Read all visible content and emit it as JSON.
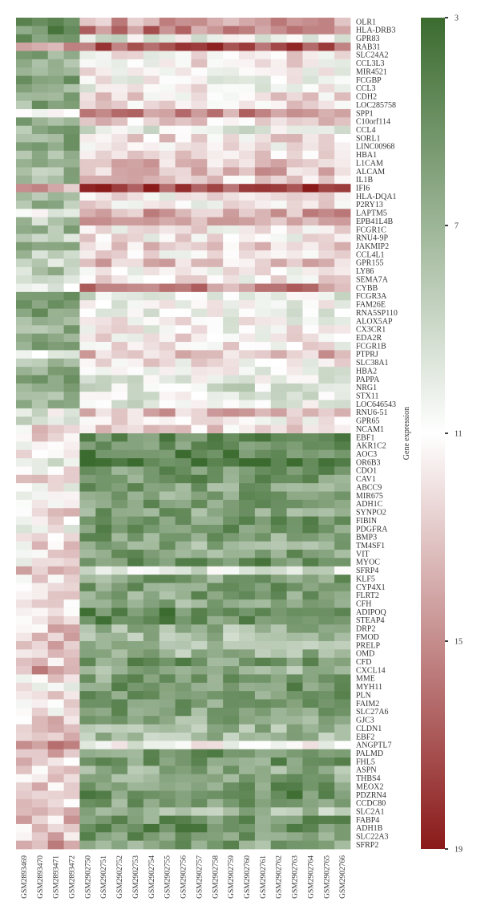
{
  "chart_data": {
    "type": "heatmap",
    "title": "",
    "colorbar_label": "Gene expression",
    "colorbar_ticks": [
      "3",
      "7",
      "11",
      "15",
      "19"
    ],
    "value_range": [
      3,
      19
    ],
    "colors": {
      "low": "#3b6b2f",
      "mid": "#ffffff",
      "high": "#8b1a1a"
    },
    "rows": [
      "OLR1",
      "HLA-DRB3",
      "GPR83",
      "RAB31",
      "SLC24A2",
      "CCL3L3",
      "MIR4521",
      "FCGBP",
      "CCL3",
      "CDH2",
      "LOC285758",
      "SPP1",
      "C10orf114",
      "CCL4",
      "SORL1",
      "LINC00968",
      "HBA1",
      "L1CAM",
      "ALCAM",
      "IL1B",
      "IFI6",
      "HLA-DQA1",
      "P2RY13",
      "LAPTM5",
      "EPB41L4B",
      "FCGR1C",
      "RNU4-9P",
      "JAKMIP2",
      "CCL4L1",
      "GPR155",
      "LY86",
      "SEMA7A",
      "CYBB",
      "FCGR3A",
      "FAM26E",
      "RNA5SP110",
      "ALOX5AP",
      "CX3CR1",
      "EDA2R",
      "FCGR1B",
      "PTPRJ",
      "SLC38A1",
      "HBA2",
      "PAPPA",
      "NRG1",
      "STX11",
      "LOC646543",
      "RNU6-51",
      "GPR65",
      "NCAM1",
      "EBF1",
      "AKR1C2",
      "AOC3",
      "OR6B3",
      "CDO1",
      "CAV1",
      "ABCC9",
      "MIR675",
      "ADH1C",
      "SYNPO2",
      "FIBIN",
      "PDGFRA",
      "BMP3",
      "TM4SF1",
      "VIT",
      "MYOC",
      "SFRP4",
      "KLF5",
      "CYP4X1",
      "FLRT2",
      "CFH",
      "ADIPOQ",
      "STEAP4",
      "DRP2",
      "FMOD",
      "PRELP",
      "OMD",
      "CFD",
      "CXCL14",
      "MME",
      "MYH11",
      "PLN",
      "FAIM2",
      "SLC27A6",
      "GJC3",
      "CLDN1",
      "EBF2",
      "ANGPTL7",
      "PALMD",
      "FHL5",
      "ASPN",
      "THBS4",
      "MEOX2",
      "PDZRN4",
      "CCDC80",
      "SLC2A1",
      "FABP4",
      "ADH1B",
      "SLC22A3",
      "SFRP2"
    ],
    "columns": [
      "GSM2893469",
      "GSM2893470",
      "GSM2893471",
      "GSM2893472",
      "GSM2902750",
      "GSM2902751",
      "GSM2902752",
      "GSM2902753",
      "GSM2902754",
      "GSM2902755",
      "GSM2902756",
      "GSM2902757",
      "GSM2902758",
      "GSM2902759",
      "GSM2902760",
      "GSM2902761",
      "GSM2902762",
      "GSM2902763",
      "GSM2902764",
      "GSM2902765",
      "GSM2902766"
    ],
    "row_group_means": [
      [
        6.0,
        14.0
      ],
      [
        5.0,
        15.5
      ],
      [
        6.0,
        10.0
      ],
      [
        14.0,
        17.0
      ],
      [
        6.0,
        11.5
      ],
      [
        6.5,
        11.5
      ],
      [
        6.5,
        11.0
      ],
      [
        6.0,
        11.0
      ],
      [
        6.5,
        11.0
      ],
      [
        7.0,
        12.0
      ],
      [
        6.5,
        12.0
      ],
      [
        10.0,
        15.0
      ],
      [
        6.5,
        12.5
      ],
      [
        6.5,
        10.0
      ],
      [
        6.5,
        12.0
      ],
      [
        6.0,
        11.0
      ],
      [
        6.5,
        12.5
      ],
      [
        7.0,
        13.0
      ],
      [
        7.0,
        13.5
      ],
      [
        7.5,
        12.5
      ],
      [
        14.0,
        17.5
      ],
      [
        7.0,
        11.5
      ],
      [
        7.5,
        11.5
      ],
      [
        11.0,
        14.0
      ],
      [
        8.0,
        14.0
      ],
      [
        7.0,
        11.5
      ],
      [
        8.0,
        11.5
      ],
      [
        7.5,
        12.5
      ],
      [
        8.0,
        11.5
      ],
      [
        9.0,
        13.0
      ],
      [
        8.0,
        11.5
      ],
      [
        8.5,
        11.5
      ],
      [
        11.0,
        15.0
      ],
      [
        6.0,
        10.0
      ],
      [
        6.0,
        10.5
      ],
      [
        6.0,
        10.5
      ],
      [
        6.0,
        11.0
      ],
      [
        6.5,
        11.0
      ],
      [
        6.5,
        11.5
      ],
      [
        6.0,
        11.5
      ],
      [
        10.0,
        13.5
      ],
      [
        7.0,
        11.5
      ],
      [
        7.0,
        10.5
      ],
      [
        6.5,
        10.0
      ],
      [
        6.5,
        9.5
      ],
      [
        6.5,
        10.0
      ],
      [
        7.0,
        10.0
      ],
      [
        10.0,
        13.5
      ],
      [
        9.5,
        11.5
      ],
      [
        12.0,
        12.5
      ],
      [
        12.0,
        5.0
      ],
      [
        11.5,
        5.0
      ],
      [
        11.5,
        4.5
      ],
      [
        10.0,
        3.5
      ],
      [
        11.5,
        5.5
      ],
      [
        12.0,
        5.5
      ],
      [
        11.0,
        6.0
      ],
      [
        11.0,
        6.0
      ],
      [
        11.5,
        6.0
      ],
      [
        12.0,
        6.0
      ],
      [
        11.5,
        5.5
      ],
      [
        11.0,
        5.0
      ],
      [
        11.0,
        6.0
      ],
      [
        12.0,
        6.5
      ],
      [
        12.0,
        6.0
      ],
      [
        11.5,
        5.0
      ],
      [
        14.0,
        9.5
      ],
      [
        11.5,
        6.0
      ],
      [
        11.5,
        5.5
      ],
      [
        12.0,
        6.0
      ],
      [
        12.5,
        6.5
      ],
      [
        11.5,
        4.5
      ],
      [
        12.0,
        5.0
      ],
      [
        13.0,
        7.0
      ],
      [
        13.0,
        7.5
      ],
      [
        13.0,
        7.0
      ],
      [
        13.0,
        7.0
      ],
      [
        12.5,
        5.5
      ],
      [
        14.0,
        7.0
      ],
      [
        12.0,
        6.0
      ],
      [
        11.5,
        5.5
      ],
      [
        12.0,
        6.0
      ],
      [
        12.0,
        6.0
      ],
      [
        12.0,
        6.0
      ],
      [
        12.5,
        6.5
      ],
      [
        13.0,
        7.0
      ],
      [
        12.5,
        7.5
      ],
      [
        15.5,
        10.5
      ],
      [
        13.0,
        5.5
      ],
      [
        12.5,
        5.5
      ],
      [
        12.0,
        6.5
      ],
      [
        12.5,
        6.0
      ],
      [
        12.5,
        5.5
      ],
      [
        12.0,
        5.0
      ],
      [
        12.5,
        6.0
      ],
      [
        12.5,
        7.5
      ],
      [
        13.0,
        5.5
      ],
      [
        12.5,
        5.0
      ],
      [
        13.0,
        5.5
      ],
      [
        14.0,
        6.0
      ]
    ],
    "group_sizes": [
      4,
      17
    ]
  }
}
